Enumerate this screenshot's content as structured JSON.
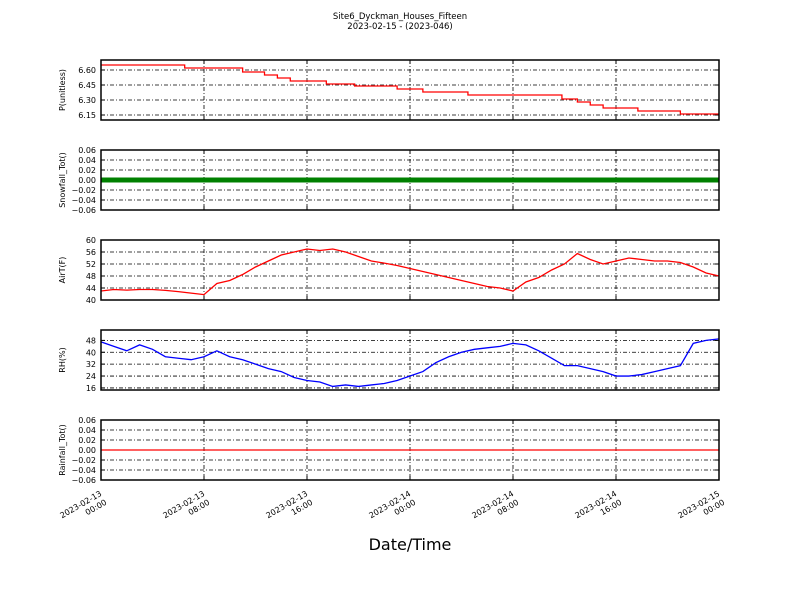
{
  "title": "Site6_Dyckman_Houses_Fifteen",
  "subtitle": "2023-02-15 - (2023-046)",
  "chart_data": {
    "type": "line",
    "xlabel": "Date/Time",
    "x_start_hours": 0,
    "x_end_hours": 48,
    "x_tick_labels": [
      [
        "2023-02-13",
        "00:00"
      ],
      [
        "2023-02-13",
        "08:00"
      ],
      [
        "2023-02-13",
        "16:00"
      ],
      [
        "2023-02-14",
        "00:00"
      ],
      [
        "2023-02-14",
        "08:00"
      ],
      [
        "2023-02-14",
        "16:00"
      ],
      [
        "2023-02-15",
        "00:00"
      ]
    ],
    "x_tick_hours": [
      0,
      8,
      16,
      24,
      32,
      40,
      48
    ],
    "panels": [
      {
        "ylabel": "P(unitless)",
        "color": "#ff0000",
        "ylim": [
          6.1,
          6.7
        ],
        "yticks": [
          6.15,
          6.3,
          6.45,
          6.6
        ],
        "ytick_labels": [
          "6.15",
          "6.30",
          "6.45",
          "6.60"
        ],
        "step": true,
        "x": [
          0,
          6.5,
          11,
          12.7,
          13.7,
          14.7,
          17.5,
          19.7,
          23,
          25,
          28.5,
          35.8,
          37,
          38,
          39,
          41.7,
          45,
          48
        ],
        "values": [
          6.65,
          6.62,
          6.58,
          6.55,
          6.52,
          6.49,
          6.46,
          6.44,
          6.41,
          6.38,
          6.35,
          6.31,
          6.28,
          6.25,
          6.22,
          6.19,
          6.16,
          6.16
        ]
      },
      {
        "ylabel": "Snowfall_Tot()",
        "color": "#008000",
        "ylim": [
          -0.06,
          0.06
        ],
        "yticks": [
          -0.06,
          -0.04,
          -0.02,
          0,
          0.02,
          0.04,
          0.06
        ],
        "ytick_labels": [
          "−0.06",
          "−0.04",
          "−0.02",
          "0.00",
          "0.02",
          "0.04",
          "0.06"
        ],
        "thick": true,
        "x": [
          0,
          48
        ],
        "values": [
          0,
          0
        ]
      },
      {
        "ylabel": "AirT(F)",
        "color": "#ff0000",
        "ylim": [
          40,
          60
        ],
        "yticks": [
          40,
          44,
          48,
          52,
          56,
          60
        ],
        "ytick_labels": [
          "40",
          "44",
          "48",
          "52",
          "56",
          "60"
        ],
        "values": [
          43,
          43.5,
          43.3,
          43.5,
          43.5,
          43.2,
          42.8,
          42.3,
          41.8,
          45.5,
          46.5,
          48.5,
          51,
          53,
          55,
          56,
          57,
          56.5,
          57,
          56,
          54.5,
          53,
          52.3,
          51.5,
          50.5,
          49.5,
          48.5,
          47.5,
          46.5,
          45.5,
          44.5,
          44,
          43,
          46,
          47.5,
          50,
          52,
          55.5,
          53.5,
          52,
          53,
          54,
          53.5,
          53,
          53,
          52.5,
          51,
          49,
          48
        ]
      },
      {
        "ylabel": "RH(%)",
        "color": "#0000ff",
        "ylim": [
          14.6,
          55
        ],
        "yticks": [
          16,
          24,
          32,
          40,
          48
        ],
        "ytick_labels": [
          "16",
          "24",
          "32",
          "40",
          "48"
        ],
        "values": [
          47,
          44,
          41,
          45,
          42,
          37,
          36,
          35,
          37,
          41,
          37,
          35,
          32,
          29,
          27,
          23,
          21,
          20,
          17,
          18,
          17,
          18,
          19,
          21,
          24,
          27,
          33,
          37,
          40,
          42,
          43,
          44,
          46,
          45,
          41,
          36,
          31,
          31,
          29,
          27,
          24,
          24,
          25,
          27,
          29,
          31,
          46,
          48,
          49
        ]
      },
      {
        "ylabel": "Rainfall_Tot()",
        "color": "#ff0000",
        "ylim": [
          -0.06,
          0.06
        ],
        "yticks": [
          -0.06,
          -0.04,
          -0.02,
          0,
          0.02,
          0.04,
          0.06
        ],
        "ytick_labels": [
          "−0.06",
          "−0.04",
          "−0.02",
          "0.00",
          "0.02",
          "0.04",
          "0.06"
        ],
        "x": [
          0,
          48
        ],
        "values": [
          0,
          0
        ]
      }
    ]
  }
}
